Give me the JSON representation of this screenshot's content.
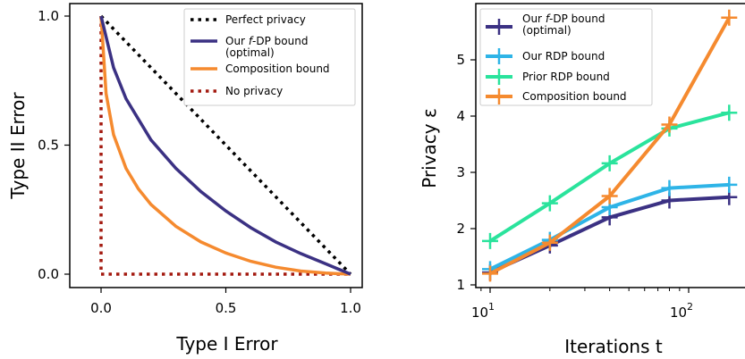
{
  "chart_data": [
    {
      "type": "line",
      "xlabel": "Type I Error",
      "ylabel": "Type II Error",
      "xlim": [
        0,
        1
      ],
      "ylim": [
        0,
        1
      ],
      "xticks": [
        "0.0",
        "0.5",
        "1.0"
      ],
      "yticks": [
        "0.0",
        "0.5",
        "1.0"
      ],
      "legend_position": "top-right",
      "grid": false,
      "series": [
        {
          "name": "Perfect privacy",
          "style": "dotted",
          "color": "#000000",
          "x": [
            0,
            1
          ],
          "y": [
            1,
            0
          ]
        },
        {
          "name": "Our f-DP bound (optimal)",
          "style": "solid",
          "color": "#3b3183",
          "x": [
            0,
            0.05,
            0.1,
            0.2,
            0.3,
            0.4,
            0.5,
            0.6,
            0.7,
            0.8,
            0.9,
            0.95,
            1.0
          ],
          "y": [
            1,
            0.8,
            0.68,
            0.52,
            0.41,
            0.32,
            0.245,
            0.18,
            0.125,
            0.08,
            0.04,
            0.02,
            0
          ]
        },
        {
          "name": "Composition bound",
          "style": "solid",
          "color": "#f58a2f",
          "x": [
            0,
            0.02,
            0.05,
            0.1,
            0.15,
            0.2,
            0.3,
            0.4,
            0.5,
            0.6,
            0.7,
            0.8,
            0.9,
            1.0
          ],
          "y": [
            1,
            0.7,
            0.54,
            0.41,
            0.33,
            0.27,
            0.185,
            0.125,
            0.082,
            0.05,
            0.027,
            0.012,
            0.004,
            0
          ]
        },
        {
          "name": "No privacy",
          "style": "dotted",
          "color": "#a3190f",
          "x": [
            0,
            0,
            1
          ],
          "y": [
            1,
            0,
            0
          ]
        }
      ]
    },
    {
      "type": "line",
      "xlabel": "Iterations t",
      "ylabel": "Privacy ε",
      "xscale": "log",
      "xlim": [
        9,
        160
      ],
      "ylim": [
        1,
        5.9
      ],
      "xticks": [
        10,
        100
      ],
      "yticks": [
        "1",
        "2",
        "3",
        "4",
        "5"
      ],
      "legend_position": "top-left",
      "grid": false,
      "series": [
        {
          "name": "Our f-DP bound (optimal)",
          "color": "#3b3183",
          "x": [
            10,
            20,
            40,
            80,
            160
          ],
          "y": [
            1.22,
            1.7,
            2.2,
            2.5,
            2.56
          ]
        },
        {
          "name": "Our RDP bound",
          "color": "#2eb4e7",
          "x": [
            10,
            20,
            40,
            80,
            160
          ],
          "y": [
            1.28,
            1.8,
            2.38,
            2.72,
            2.78
          ]
        },
        {
          "name": "Prior RDP bound",
          "color": "#2ae39c",
          "x": [
            10,
            20,
            40,
            80,
            160
          ],
          "y": [
            1.78,
            2.45,
            3.16,
            3.78,
            4.06
          ]
        },
        {
          "name": "Composition bound",
          "color": "#f58a2f",
          "x": [
            10,
            20,
            40,
            80,
            160
          ],
          "y": [
            1.2,
            1.75,
            2.58,
            3.85,
            5.75
          ]
        }
      ]
    }
  ]
}
